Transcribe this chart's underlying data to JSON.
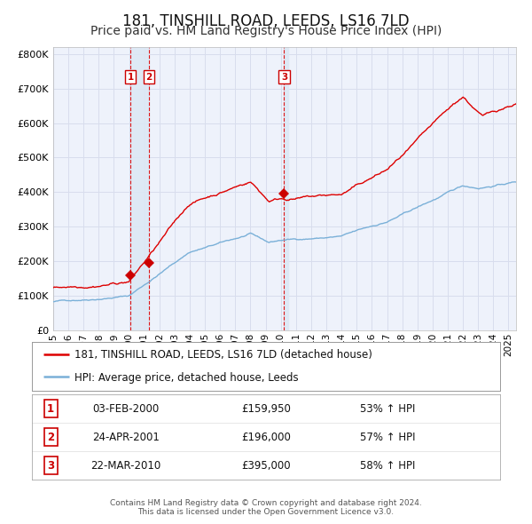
{
  "title": "181, TINSHILL ROAD, LEEDS, LS16 7LD",
  "subtitle": "Price paid vs. HM Land Registry's House Price Index (HPI)",
  "title_fontsize": 12,
  "subtitle_fontsize": 10,
  "xlim_start": 1995.0,
  "xlim_end": 2025.5,
  "ylim_min": 0,
  "ylim_max": 820000,
  "yticks": [
    0,
    100000,
    200000,
    300000,
    400000,
    500000,
    600000,
    700000,
    800000
  ],
  "ytick_labels": [
    "£0",
    "£100K",
    "£200K",
    "£300K",
    "£400K",
    "£500K",
    "£600K",
    "£700K",
    "£800K"
  ],
  "background_color": "#eef2fb",
  "grid_color": "#d8dded",
  "red_line_color": "#dd0000",
  "blue_line_color": "#7ab0d8",
  "sale_marker_color": "#cc0000",
  "dashed_line_color": "#dd0000",
  "band_color": "#dde8f5",
  "legend_items": [
    "181, TINSHILL ROAD, LEEDS, LS16 7LD (detached house)",
    "HPI: Average price, detached house, Leeds"
  ],
  "sales": [
    {
      "num": 1,
      "date": "03-FEB-2000",
      "price": 159950,
      "pct": "53%",
      "x": 2000.09
    },
    {
      "num": 2,
      "date": "24-APR-2001",
      "price": 196000,
      "pct": "57%",
      "x": 2001.31
    },
    {
      "num": 3,
      "date": "22-MAR-2010",
      "price": 395000,
      "pct": "58%",
      "x": 2010.22
    }
  ],
  "footnote1": "Contains HM Land Registry data © Crown copyright and database right 2024.",
  "footnote2": "This data is licensed under the Open Government Licence v3.0."
}
